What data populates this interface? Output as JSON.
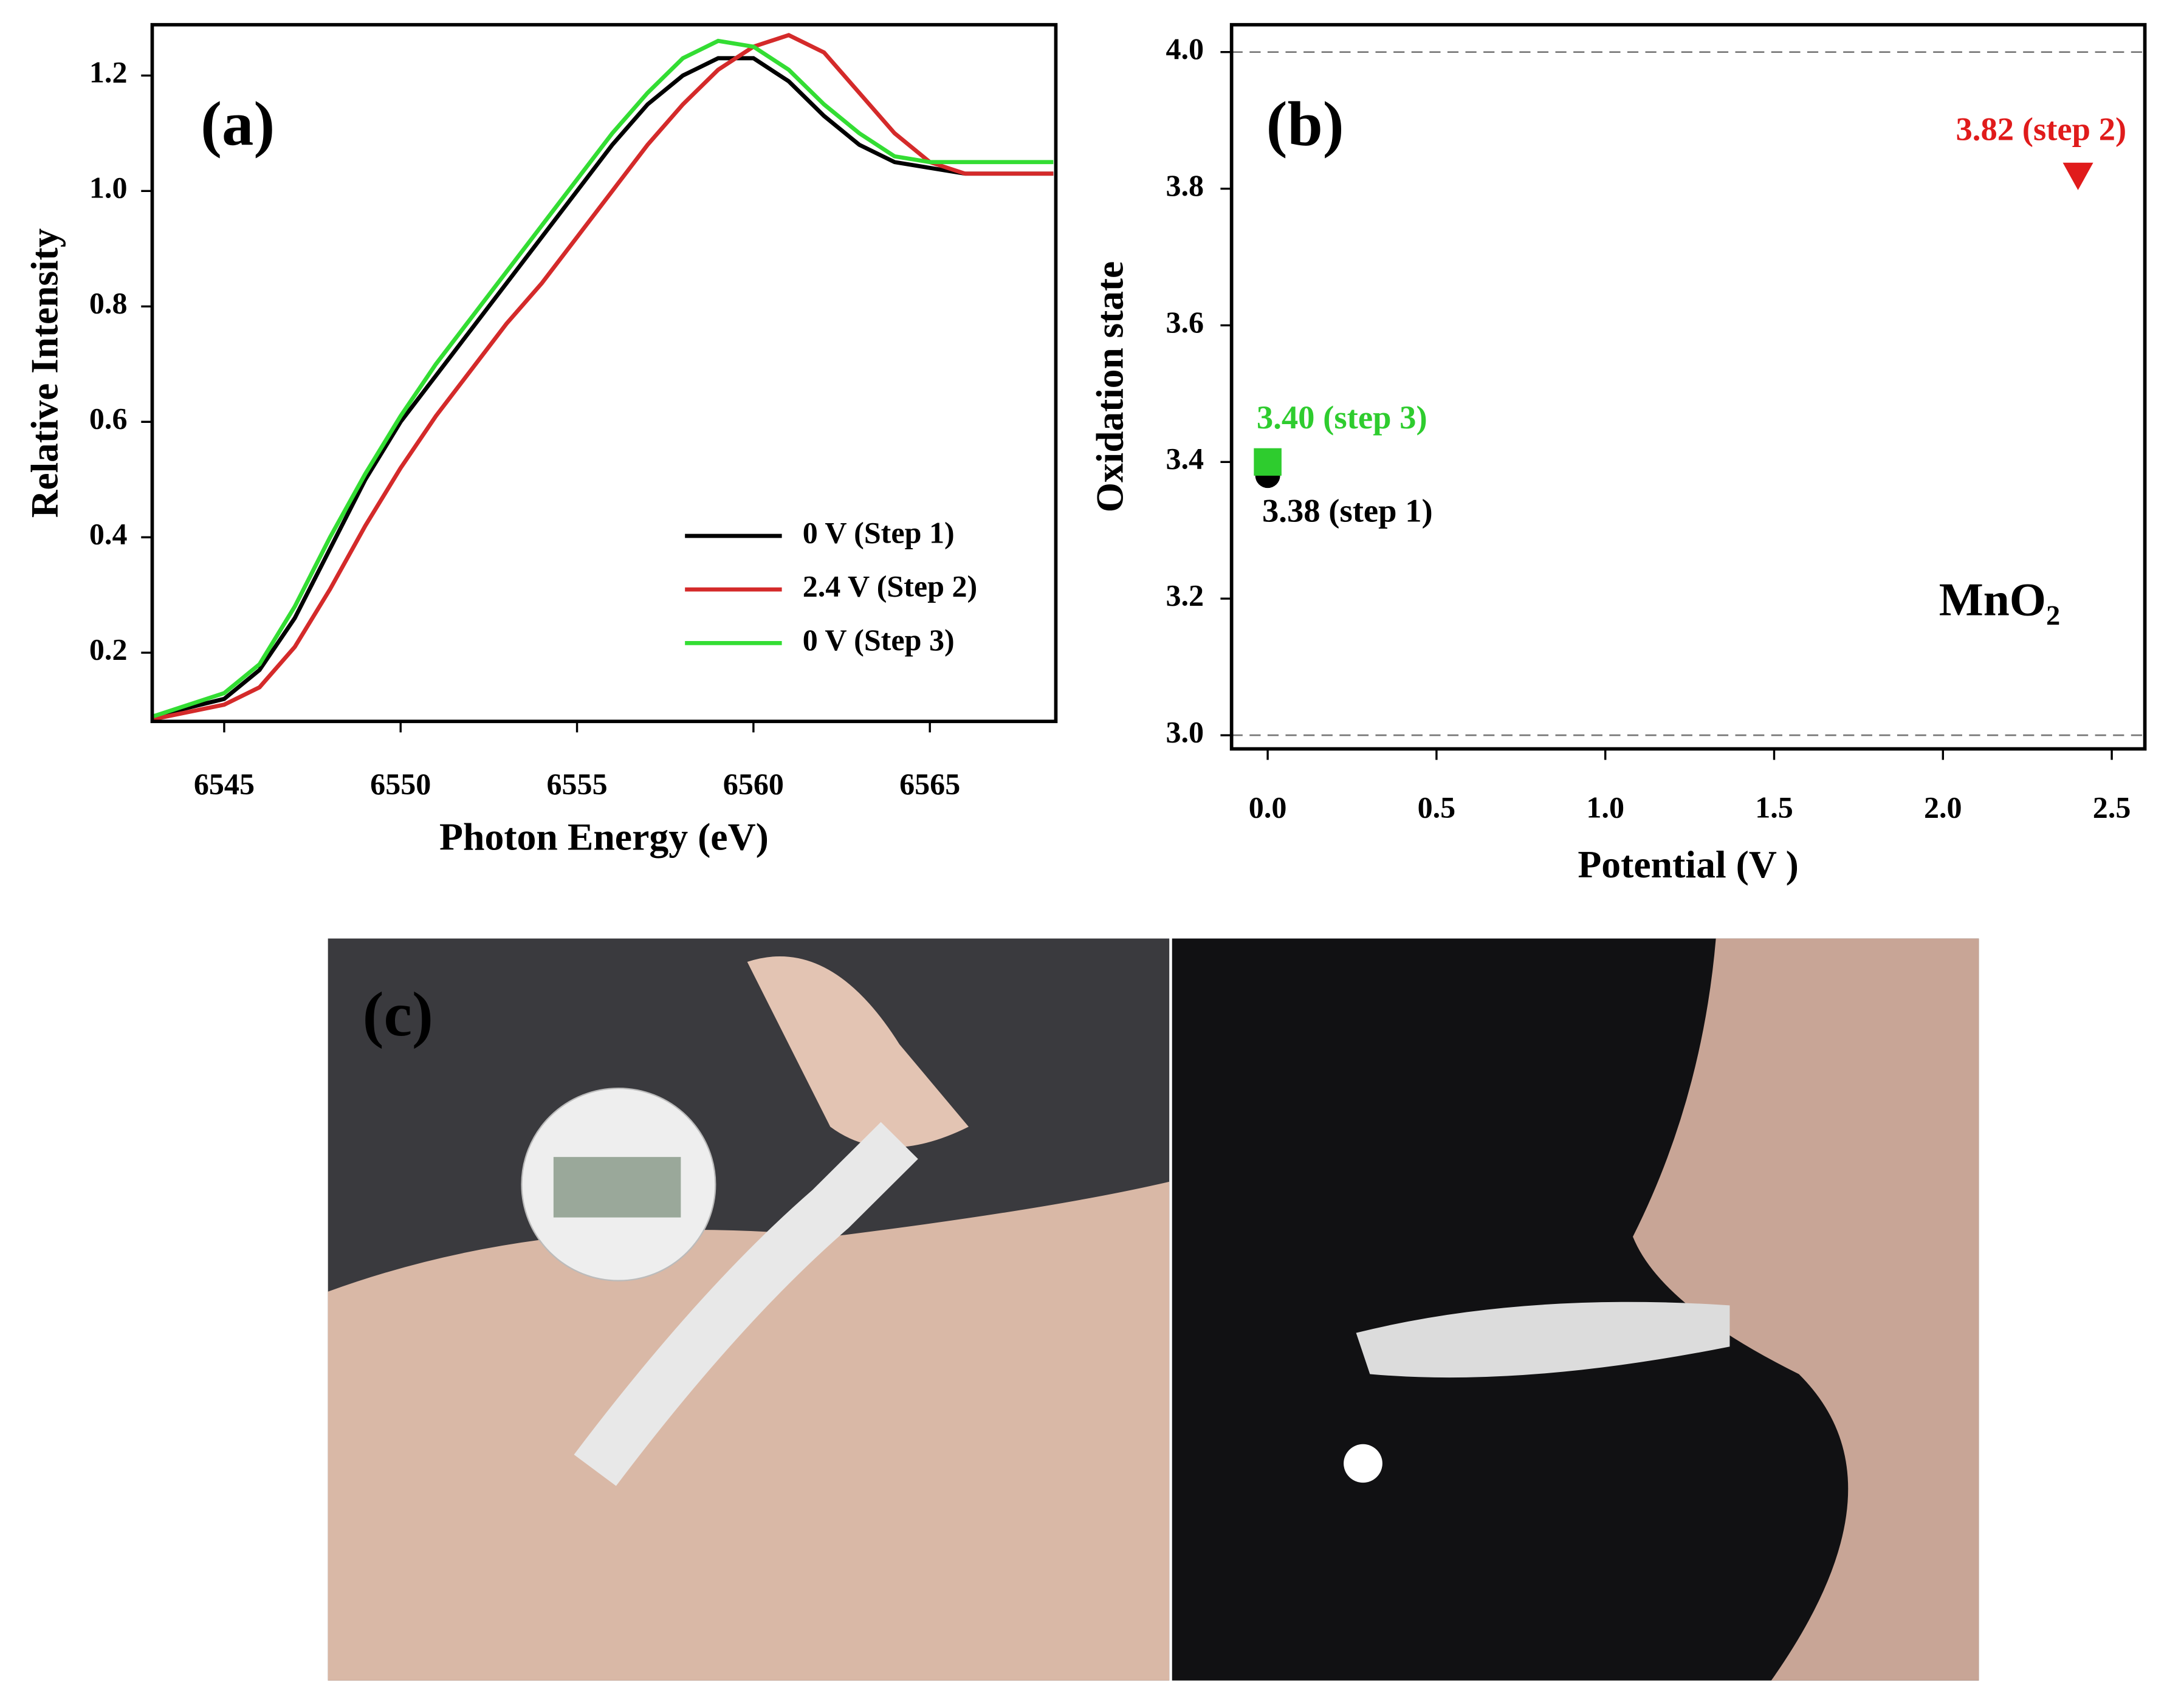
{
  "chart_data": [
    {
      "type": "line",
      "panel_label": "(a)",
      "xlabel": "Photon Energy (eV)",
      "ylabel": "Relative Intensity",
      "x": [
        6543,
        6545,
        6546,
        6547,
        6548,
        6549,
        6550,
        6551,
        6552,
        6553,
        6554,
        6555,
        6556,
        6557,
        6558,
        6559,
        6560,
        6561,
        6562,
        6563,
        6564,
        6565,
        6566,
        6567,
        6568.5
      ],
      "series": [
        {
          "name": "0 V (Step 1)",
          "color": "#000000",
          "values": [
            0.09,
            0.12,
            0.17,
            0.26,
            0.38,
            0.5,
            0.6,
            0.68,
            0.76,
            0.84,
            0.92,
            1.0,
            1.08,
            1.15,
            1.2,
            1.23,
            1.23,
            1.19,
            1.13,
            1.08,
            1.05,
            1.04,
            1.03,
            1.03,
            1.03
          ]
        },
        {
          "name": "2.4 V (Step 2)",
          "color": "#d42a2a",
          "values": [
            0.085,
            0.11,
            0.14,
            0.21,
            0.31,
            0.42,
            0.52,
            0.61,
            0.69,
            0.77,
            0.84,
            0.92,
            1.0,
            1.08,
            1.15,
            1.21,
            1.25,
            1.27,
            1.24,
            1.17,
            1.1,
            1.05,
            1.03,
            1.03,
            1.03
          ]
        },
        {
          "name": "0 V (Step 3)",
          "color": "#33dd33",
          "values": [
            0.09,
            0.13,
            0.18,
            0.28,
            0.4,
            0.51,
            0.61,
            0.7,
            0.78,
            0.86,
            0.94,
            1.02,
            1.1,
            1.17,
            1.23,
            1.26,
            1.25,
            1.21,
            1.15,
            1.1,
            1.06,
            1.05,
            1.05,
            1.05,
            1.05
          ]
        }
      ],
      "xlim": [
        6542.96,
        6568.57
      ],
      "xticks": [
        6545,
        6550,
        6555,
        6560,
        6565
      ],
      "ylim": [
        0.081,
        1.288
      ],
      "yticks": [
        0.2,
        0.4,
        0.6,
        0.8,
        {
          "value": 1.0,
          "label": "1.0"
        },
        1.2
      ],
      "legend": "lower right"
    },
    {
      "type": "scatter",
      "panel_label": "(b)",
      "xlabel": "Potential (V )",
      "ylabel": "Oxidation state",
      "annotation": "MnO₂",
      "points": [
        {
          "x": 0,
          "y": 3.38,
          "label": "3.38 (step 1)",
          "color": "#000000",
          "marker": "circle"
        },
        {
          "x": 2.4,
          "y": 3.82,
          "label": "3.82 (step 2)",
          "color": "#e01b1b",
          "marker": "triangle-down"
        },
        {
          "x": 0,
          "y": 3.4,
          "label": "3.40 (step 3)",
          "color": "#2ecc2e",
          "marker": "square"
        }
      ],
      "xlim": [
        -0.107,
        2.598
      ],
      "xticks": [
        {
          "value": 0,
          "label": "0.0"
        },
        0.5,
        {
          "value": 1,
          "label": "1.0"
        },
        1.5,
        {
          "value": 2,
          "label": "2.0"
        },
        2.5
      ],
      "ylim": [
        2.98,
        4.04
      ],
      "yticks": [
        {
          "value": 3,
          "label": "3.0"
        },
        3.2,
        3.4,
        3.6,
        3.8,
        {
          "value": 4,
          "label": "4.0"
        }
      ],
      "reference_lines": [
        3,
        4
      ]
    }
  ],
  "photo_panel": {
    "label": "(c)"
  }
}
